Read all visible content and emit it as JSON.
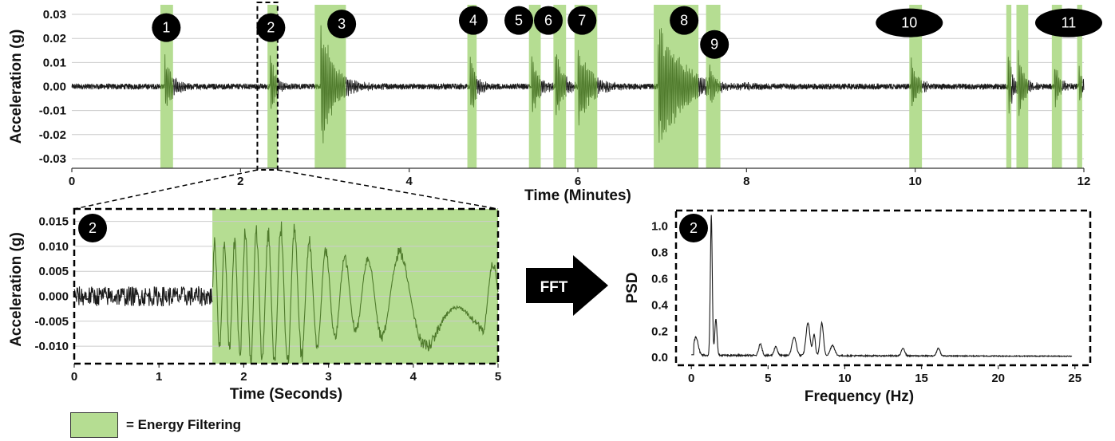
{
  "colors": {
    "highlight": "#b5dd92",
    "signal": "#1a1a1a",
    "signal_in_band": "#4f7a2c",
    "badge": "#000000",
    "grid": "#cccccc",
    "arrow": "#000000"
  },
  "legend": {
    "label": "= Energy Filtering"
  },
  "fft_arrow": {
    "label": "FFT"
  },
  "chart_data": [
    {
      "id": "full-recording",
      "type": "line",
      "xlabel": "Time (Minutes)",
      "ylabel": "Acceleration (g)",
      "xlim": [
        0,
        12
      ],
      "ylim": [
        -0.034,
        0.034
      ],
      "xticks": [
        0,
        2,
        4,
        6,
        8,
        10,
        12
      ],
      "yticks": [
        -0.03,
        -0.02,
        -0.01,
        0.0,
        0.01,
        0.02,
        0.03
      ],
      "ytick_labels": [
        "-0.03",
        "-0.02",
        "-0.01",
        "0.00",
        "0.01",
        "0.02",
        "0.03"
      ],
      "grid": true,
      "noise_amplitude": 0.0012,
      "events": [
        {
          "label": "1",
          "band": [
            1.05,
            1.2
          ],
          "onset": 1.1,
          "peak": 0.013,
          "decay": 0.1
        },
        {
          "label": "2",
          "band": [
            2.32,
            2.44
          ],
          "onset": 2.35,
          "peak": 0.017,
          "decay": 0.06
        },
        {
          "label": "3",
          "band": [
            2.88,
            3.25
          ],
          "onset": 2.95,
          "peak": 0.03,
          "decay": 0.15
        },
        {
          "label": "4",
          "band": [
            4.69,
            4.8
          ],
          "onset": 4.72,
          "peak": 0.015,
          "decay": 0.08
        },
        {
          "label": "5",
          "band": [
            5.42,
            5.56
          ],
          "onset": 5.45,
          "peak": 0.016,
          "decay": 0.08
        },
        {
          "label": "6",
          "band": [
            5.71,
            5.86
          ],
          "onset": 5.73,
          "peak": 0.02,
          "decay": 0.08
        },
        {
          "label": "7",
          "band": [
            5.96,
            6.23
          ],
          "onset": 6.0,
          "peak": 0.02,
          "decay": 0.14
        },
        {
          "label": "8",
          "band": [
            6.9,
            7.43
          ],
          "onset": 6.95,
          "peak": 0.03,
          "decay": 0.28
        },
        {
          "label": "9",
          "band": [
            7.52,
            7.69
          ],
          "onset": 7.56,
          "peak": 0.013,
          "decay": 0.09
        },
        {
          "label": "10",
          "band": [
            9.93,
            10.08
          ],
          "onset": 9.95,
          "peak": 0.012,
          "decay": 0.08
        },
        {
          "label": "11",
          "band": [
            11.08,
            11.14
          ],
          "onset": 11.1,
          "peak": 0.015,
          "decay": 0.06
        },
        {
          "label": "",
          "band": [
            11.2,
            11.34
          ],
          "onset": 11.22,
          "peak": 0.016,
          "decay": 0.07
        },
        {
          "label": "",
          "band": [
            11.62,
            11.74
          ],
          "onset": 11.65,
          "peak": 0.012,
          "decay": 0.06
        },
        {
          "label": "",
          "band": [
            11.92,
            11.98
          ],
          "onset": 11.94,
          "peak": 0.01,
          "decay": 0.05
        }
      ],
      "badges": [
        {
          "label": "1",
          "x": 1.12,
          "y": 0.0245,
          "shape": "circle"
        },
        {
          "label": "2",
          "x": 2.36,
          "y": 0.0245,
          "shape": "circle"
        },
        {
          "label": "3",
          "x": 3.2,
          "y": 0.026,
          "shape": "circle"
        },
        {
          "label": "4",
          "x": 4.76,
          "y": 0.0275,
          "shape": "circle"
        },
        {
          "label": "5",
          "x": 5.3,
          "y": 0.0275,
          "shape": "circle"
        },
        {
          "label": "6",
          "x": 5.65,
          "y": 0.0275,
          "shape": "circle"
        },
        {
          "label": "7",
          "x": 6.05,
          "y": 0.0275,
          "shape": "circle"
        },
        {
          "label": "8",
          "x": 7.26,
          "y": 0.0275,
          "shape": "circle"
        },
        {
          "label": "9",
          "x": 7.62,
          "y": 0.0175,
          "shape": "circle"
        },
        {
          "label": "10",
          "x": 9.93,
          "y": 0.0265,
          "shape": "oval"
        },
        {
          "label": "11",
          "x": 11.82,
          "y": 0.0265,
          "shape": "oval"
        }
      ],
      "zoom_window": [
        2.2,
        2.44
      ]
    },
    {
      "id": "event-2-zoom",
      "type": "line",
      "badge": "2",
      "xlabel": "Time (Seconds)",
      "ylabel": "Acceleration (g)",
      "xlim": [
        0,
        5
      ],
      "ylim": [
        -0.0135,
        0.0175
      ],
      "xticks": [
        0,
        1,
        2,
        3,
        4,
        5
      ],
      "yticks": [
        -0.01,
        -0.005,
        0.0,
        0.005,
        0.01,
        0.015
      ],
      "ytick_labels": [
        "-0.010",
        "-0.005",
        "0.000",
        "0.005",
        "0.010",
        "0.015"
      ],
      "grid": true,
      "band": [
        1.63,
        5.0
      ],
      "pre_noise_amplitude": 0.002,
      "oscillation": [
        {
          "t": 1.85,
          "v": 0.012
        },
        {
          "t": 2.05,
          "v": 0.015
        },
        {
          "t": 2.25,
          "v": 0.014
        },
        {
          "t": 2.5,
          "v": 0.016
        },
        {
          "t": 2.72,
          "v": 0.013
        },
        {
          "t": 3.0,
          "v": 0.01
        },
        {
          "t": 3.3,
          "v": 0.008
        },
        {
          "t": 3.55,
          "v": 0.009
        },
        {
          "t": 3.85,
          "v": 0.01
        },
        {
          "t": 4.25,
          "v": 0.012
        },
        {
          "t": 4.6,
          "v": 0.01
        },
        {
          "t": 5.0,
          "v": 0.007
        }
      ]
    },
    {
      "id": "event-2-psd",
      "type": "line",
      "badge": "2",
      "xlabel": "Frequency (Hz)",
      "ylabel": "PSD",
      "xlim": [
        -1,
        26
      ],
      "ylim": [
        -0.06,
        1.12
      ],
      "xticks": [
        0,
        5,
        10,
        15,
        20,
        25
      ],
      "yticks": [
        0.0,
        0.2,
        0.4,
        0.6,
        0.8,
        1.0
      ],
      "ytick_labels": [
        "0.0",
        "0.2",
        "0.4",
        "0.6",
        "0.8",
        "1.0"
      ],
      "grid": false,
      "peaks": [
        {
          "f": 0.3,
          "p": 0.14,
          "w": 0.2
        },
        {
          "f": 1.3,
          "p": 1.07,
          "w": 0.09
        },
        {
          "f": 1.6,
          "p": 0.28,
          "w": 0.1
        },
        {
          "f": 4.5,
          "p": 0.09,
          "w": 0.15
        },
        {
          "f": 5.5,
          "p": 0.07,
          "w": 0.15
        },
        {
          "f": 6.7,
          "p": 0.14,
          "w": 0.2
        },
        {
          "f": 7.6,
          "p": 0.25,
          "w": 0.18
        },
        {
          "f": 8.0,
          "p": 0.16,
          "w": 0.12
        },
        {
          "f": 8.5,
          "p": 0.25,
          "w": 0.15
        },
        {
          "f": 9.2,
          "p": 0.08,
          "w": 0.2
        },
        {
          "f": 13.8,
          "p": 0.06,
          "w": 0.15
        },
        {
          "f": 16.1,
          "p": 0.06,
          "w": 0.15
        }
      ],
      "floor": 0.012
    }
  ]
}
